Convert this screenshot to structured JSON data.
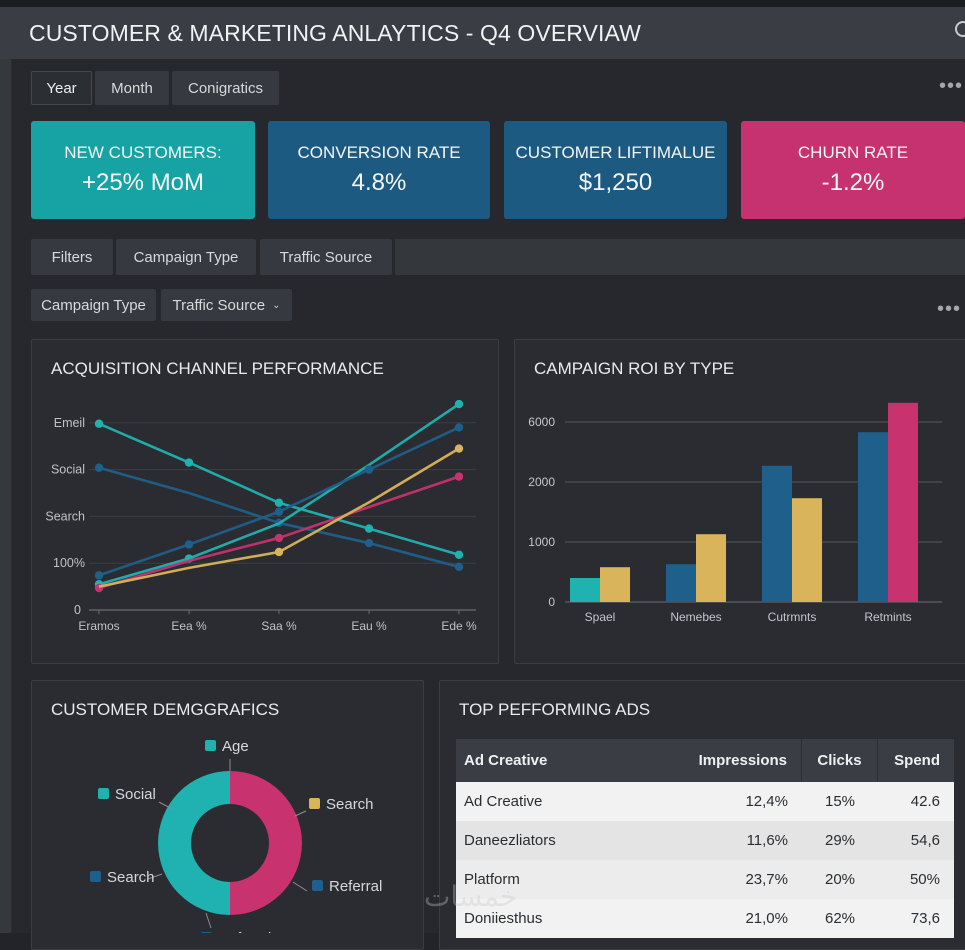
{
  "window": {
    "title": "CUSTOMER & MARKETING ANLAYTICS - Q4 OVERVIAW"
  },
  "period_tabs": [
    {
      "label": "Year",
      "active": true
    },
    {
      "label": "Month",
      "active": false
    },
    {
      "label": "Conigratics",
      "active": false
    }
  ],
  "kpis": [
    {
      "label": "NEW CUSTOMERS:",
      "value": "+25% MoM",
      "color": "#17a2a4"
    },
    {
      "label": "CONVERSION RATE",
      "value": "4.8%",
      "color": "#1d5a82"
    },
    {
      "label": "CUSTOMER LIFTIMALUE",
      "value": "$1,250",
      "color": "#1d5a82"
    },
    {
      "label": "CHURN RATE",
      "value": "-1.2%",
      "color": "#c6316f"
    }
  ],
  "filter_bar": {
    "items": [
      "Filters",
      "Campaign Type",
      "Traffic Source"
    ]
  },
  "filter_dropdowns": {
    "campaign_type": "Campaign Type",
    "traffic_source": "Traffic Source"
  },
  "icons": {
    "more": "more-horizontal-icon",
    "dropdown": "chevron-down-icon"
  },
  "colors": {
    "teal": "#1fb2b0",
    "blue": "#1f5f8b",
    "yellow": "#d9b45a",
    "pink": "#c8326f"
  },
  "chart_data": [
    {
      "type": "line",
      "title": "ACQUISITION CHANNEL PERFORMANCE",
      "categories": [
        "Eramos",
        "Eea %",
        "Saa %",
        "Eau %",
        "Ede %"
      ],
      "y_tick_labels": [
        "0",
        "100%",
        "Search",
        "Social",
        "Emeil"
      ],
      "ylim": [
        0,
        4
      ],
      "grid": true,
      "series": [
        {
          "name": "teal-decline",
          "color": "#1fb2b0",
          "values": [
            3.98,
            3.15,
            2.29,
            1.74,
            1.18
          ],
          "markers": [
            true,
            true,
            true,
            true,
            true
          ]
        },
        {
          "name": "blue-decline",
          "color": "#1f5f8b",
          "values": [
            3.04,
            2.5,
            1.86,
            1.43,
            0.92
          ],
          "markers": [
            true,
            false,
            true,
            true,
            true
          ]
        },
        {
          "name": "teal-rise",
          "color": "#1fb2b0",
          "values": [
            0.55,
            1.1,
            1.85,
            3.1,
            4.4
          ],
          "markers": [
            true,
            true,
            false,
            false,
            true
          ]
        },
        {
          "name": "blue-rise",
          "color": "#1f5f8b",
          "values": [
            0.74,
            1.4,
            2.1,
            3.0,
            3.9
          ],
          "markers": [
            true,
            true,
            true,
            true,
            true
          ]
        },
        {
          "name": "pink",
          "color": "#c8326f",
          "values": [
            0.47,
            1.05,
            1.54,
            2.2,
            2.85
          ],
          "markers": [
            true,
            false,
            true,
            false,
            true
          ]
        },
        {
          "name": "yellow",
          "color": "#d9b45a",
          "values": [
            0.5,
            0.9,
            1.24,
            2.3,
            3.45
          ],
          "markers": [
            false,
            false,
            true,
            false,
            true
          ]
        }
      ]
    },
    {
      "type": "bar",
      "title": "CAMPAIGN ROI BY TYPE",
      "categories": [
        "Spael",
        "Nemebes",
        "Cutrmnts",
        "Retmints"
      ],
      "y_tick_labels": [
        "0",
        "1000",
        "2000",
        "6000"
      ],
      "y_tick_values": [
        0,
        1000,
        2000,
        6000
      ],
      "grid": true,
      "series": [
        {
          "name": "primary",
          "values": [
            400,
            630,
            3080,
            5320
          ],
          "colors": [
            "#1fb2b0",
            "#1f5f8b",
            "#1f5f8b",
            "#1f5f8b"
          ]
        },
        {
          "name": "secondary",
          "values": [
            580,
            1130,
            1730,
            7280
          ],
          "colors": [
            "#d9b45a",
            "#d9b45a",
            "#d9b45a",
            "#c8326f"
          ]
        }
      ]
    },
    {
      "type": "pie",
      "title": "CUSTOMER DEMGGRAFICS",
      "donut": true,
      "slices": [
        {
          "label": "Referral",
          "value": 50,
          "color": "#c8326f"
        },
        {
          "label": "Social",
          "value": 50,
          "color": "#1fb2b0"
        }
      ],
      "legend_labels": [
        {
          "label": "Age",
          "color": "#1fb2b0"
        },
        {
          "label": "Social",
          "color": "#1fb2b0"
        },
        {
          "label": "Search",
          "color": "#d9b45a"
        },
        {
          "label": "Search",
          "color": "#1f5f8b"
        },
        {
          "label": "Referral",
          "color": "#1f5f8b"
        },
        {
          "label": "Referral",
          "color": "#1f5f8b"
        }
      ]
    }
  ],
  "top_ads": {
    "title": "TOP PEFFORMING ADS",
    "columns": [
      "Ad Creative",
      "Impressions",
      "Clicks",
      "Spend"
    ],
    "rows": [
      [
        "Ad Creative",
        "12,4%",
        "15%",
        "42.6"
      ],
      [
        "Daneezliators",
        "11,6%",
        "29%",
        "54,6"
      ],
      [
        "Platform",
        "23,7%",
        "20%",
        "50%"
      ],
      [
        "Doniiesthus",
        "21,0%",
        "62%",
        "73,6"
      ]
    ]
  },
  "watermark": "خمسات"
}
